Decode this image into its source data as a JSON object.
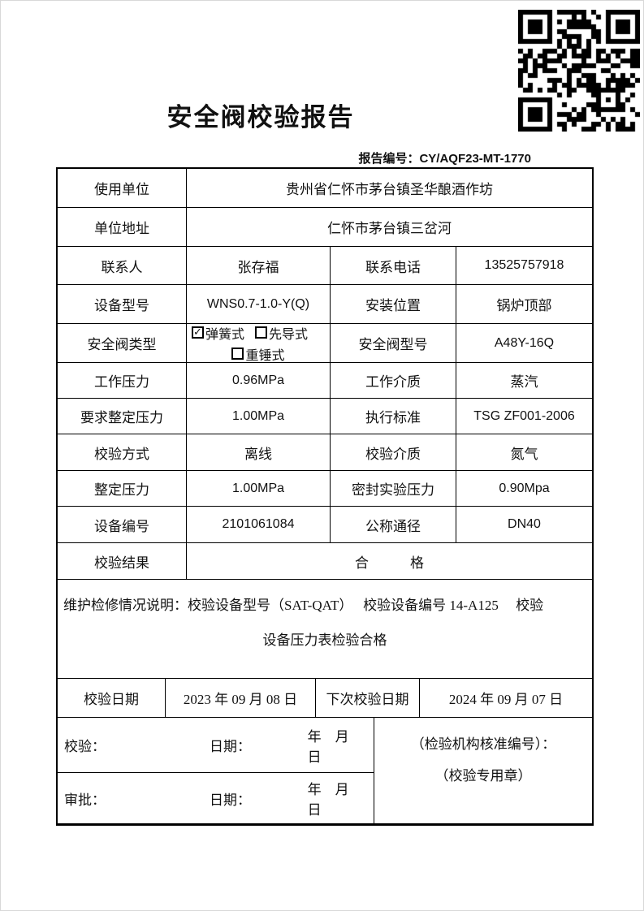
{
  "page": {
    "title": "安全阀校验报告",
    "report_no_label": "报告编号：",
    "report_no": "CY/AQF23-MT-1770",
    "qr_icon": "qr-code"
  },
  "table": {
    "r1": {
      "label": "使用单位",
      "value": "贵州省仁怀市茅台镇圣华酿酒作坊"
    },
    "r2": {
      "label": "单位地址",
      "value": "仁怀市茅台镇三岔河"
    },
    "r3": {
      "l1": "联系人",
      "v1": "张存福",
      "l2": "联系电话",
      "v2": "13525757918"
    },
    "r4": {
      "l1": "设备型号",
      "v1": "WNS0.7-1.0-Y(Q)",
      "l2": "安装位置",
      "v2": "锅炉顶部"
    },
    "r5": {
      "l1": "安全阀类型",
      "options": [
        {
          "label": "弹簧式",
          "mark": "✓"
        },
        {
          "label": "先导式",
          "mark": ""
        },
        {
          "label": "重锤式",
          "mark": ""
        }
      ],
      "l2": "安全阀型号",
      "v2": "A48Y-16Q"
    },
    "r6": {
      "l1": "工作压力",
      "v1": "0.96MPa",
      "l2": "工作介质",
      "v2": "蒸汽"
    },
    "r7": {
      "l1": "要求整定压力",
      "v1": "1.00MPa",
      "l2": "执行标准",
      "v2": "TSG ZF001-2006"
    },
    "r8": {
      "l1": "校验方式",
      "v1": "离线",
      "l2": "校验介质",
      "v2": "氮气"
    },
    "r9": {
      "l1": "整定压力",
      "v1": "1.00MPa",
      "l2": "密封实验压力",
      "v2": "0.90Mpa"
    },
    "r10": {
      "l1": "设备编号",
      "v1": "2101061084",
      "l2": "公称通径",
      "v2": "DN40"
    },
    "r11": {
      "label": "校验结果",
      "value": "合　　　格"
    },
    "note": {
      "line1": "维护检修情况说明：校验设备型号（SAT-QAT）　 校验设备编号 14-A125　 校验",
      "line2": "设备压力表检验合格"
    },
    "dates": {
      "l1": "校验日期",
      "v1": "2023 年 09 月 08 日",
      "l2": "下次校验日期",
      "v2": "2024 年 09 月 07 日"
    },
    "sig": {
      "row1": {
        "who": "校验：",
        "date_label": "日期：",
        "ymd": "年　月　日"
      },
      "row2": {
        "who": "审批：",
        "date_label": "日期：",
        "ymd": "年　月　日"
      },
      "stamp_line1": "（检验机构核准编号）：",
      "stamp_line2": "（校验专用章）"
    }
  }
}
